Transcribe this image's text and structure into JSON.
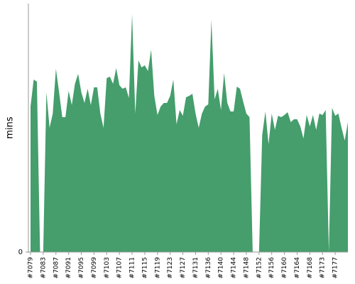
{
  "chart_data": {
    "type": "area",
    "ylabel": "mins",
    "categories": [
      "#7079",
      null,
      null,
      null,
      "#7083",
      null,
      null,
      null,
      "#7087",
      null,
      null,
      null,
      "#7091",
      null,
      null,
      null,
      "#7095",
      null,
      null,
      null,
      "#7099",
      null,
      null,
      null,
      "#7103",
      null,
      null,
      null,
      "#7107",
      null,
      null,
      null,
      "#7111",
      null,
      null,
      null,
      "#7115",
      null,
      null,
      null,
      "#7119",
      null,
      null,
      null,
      "#7123",
      null,
      null,
      null,
      "#7127",
      null,
      null,
      null,
      "#7131",
      null,
      null,
      null,
      "#7136",
      null,
      null,
      null,
      "#7140",
      null,
      null,
      null,
      "#7144",
      null,
      null,
      null,
      "#7148",
      null,
      null,
      null,
      "#7152",
      null,
      null,
      null,
      "#7156",
      null,
      null,
      null,
      "#7160",
      null,
      null,
      null,
      "#7164",
      null,
      null,
      null,
      "#7168",
      null,
      null,
      null,
      "#7173",
      null,
      null,
      null,
      "#7177",
      null,
      null,
      null,
      null
    ],
    "series": [
      {
        "color": "#459e6c",
        "values": [
          20.5,
          24.3,
          24,
          0,
          0,
          22.5,
          17.5,
          19.5,
          25.8,
          22.5,
          19,
          19,
          22.7,
          20.7,
          23.7,
          25.1,
          22.5,
          21,
          23,
          20.7,
          23.2,
          23.2,
          19.5,
          17.5,
          24.5,
          24.7,
          23.7,
          25.9,
          23.5,
          23,
          23.2,
          21.7,
          33.5,
          19.5,
          27,
          26,
          26.3,
          25.5,
          28.5,
          22,
          19.3,
          20.5,
          21,
          21,
          22,
          24.3,
          18,
          20,
          19.2,
          21.8,
          22,
          22.3,
          19.5,
          17.5,
          19.5,
          20.5,
          20.8,
          32.7,
          21.5,
          23,
          20,
          25.2,
          21,
          19.8,
          19.8,
          23.3,
          23,
          21.2,
          19.5,
          19,
          0,
          0,
          0,
          16.5,
          19.8,
          15.2,
          19.5,
          17.2,
          19.2,
          19,
          19.3,
          19.7,
          18.3,
          18.7,
          18.7,
          17.7,
          16,
          19.3,
          17.7,
          19.3,
          17.2,
          19.5,
          19.3,
          20,
          0,
          20.3,
          19.2,
          19.5,
          17.5,
          15.7,
          18.3
        ]
      }
    ],
    "ylim": [
      0,
      35
    ],
    "yticks": [
      0
    ]
  }
}
